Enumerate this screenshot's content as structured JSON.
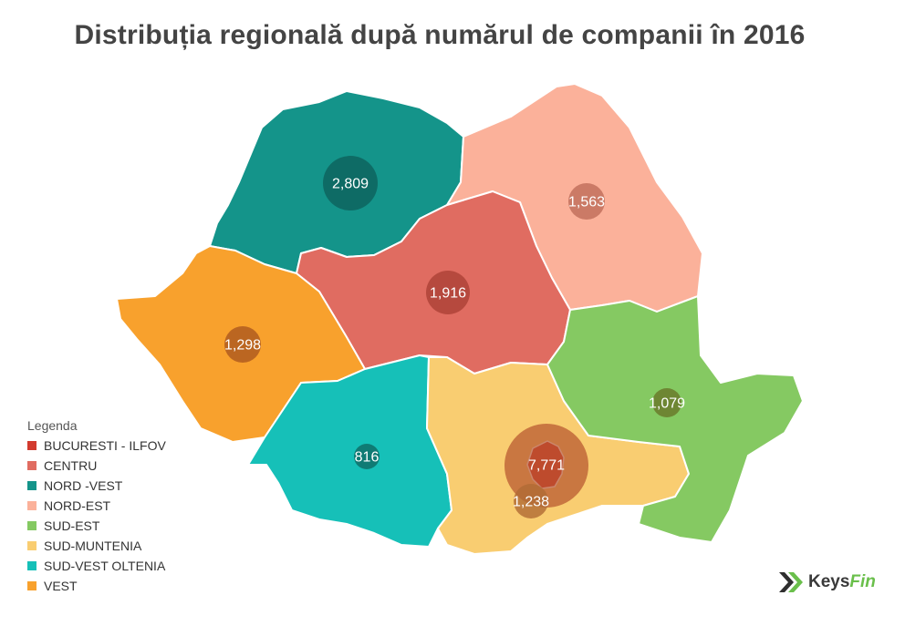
{
  "title": "Distribuția regională după numărul de companii în 2016",
  "regions": [
    {
      "name": "BUCURESTI - ILFOV",
      "value": 7771,
      "label": "7,771",
      "color": "#d23a2e"
    },
    {
      "name": "CENTRU",
      "value": 1916,
      "label": "1,916",
      "color": "#e06c61"
    },
    {
      "name": "NORD -VEST",
      "value": 2809,
      "label": "2,809",
      "color": "#14948a"
    },
    {
      "name": "NORD-EST",
      "value": 1563,
      "label": "1,563",
      "color": "#fbb19a"
    },
    {
      "name": "SUD-EST",
      "value": 1079,
      "label": "1,079",
      "color": "#85c962"
    },
    {
      "name": "SUD-MUNTENIA",
      "value": 1238,
      "label": "1,238",
      "color": "#f9cd71"
    },
    {
      "name": "SUD-VEST OLTENIA",
      "value": 816,
      "label": "816",
      "color": "#16c0b8"
    },
    {
      "name": "VEST",
      "value": 1298,
      "label": "1,298",
      "color": "#f8a12d"
    }
  ],
  "legend": {
    "title": "Legenda",
    "items": [
      "BUCURESTI - ILFOV",
      "CENTRU",
      "NORD -VEST",
      "NORD-EST",
      "SUD-EST",
      "SUD-MUNTENIA",
      "SUD-VEST OLTENIA",
      "VEST"
    ]
  },
  "brand": {
    "part1": "Keys",
    "part2": "Fin"
  }
}
